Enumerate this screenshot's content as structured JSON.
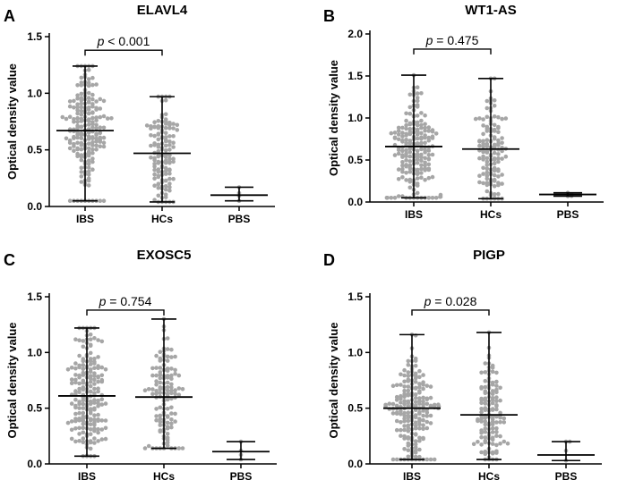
{
  "figure": {
    "colors": {
      "points": "#a6a6a6",
      "lines": "#000000",
      "text": "#000000"
    }
  },
  "chart_data": [
    {
      "type": "scatter",
      "panel": "A",
      "title": "ELAVL4",
      "xlabel": "",
      "ylabel": "Optical density value",
      "ylim": [
        0,
        1.5
      ],
      "yticks": [
        "0.0",
        "0.5",
        "1.0",
        "1.5"
      ],
      "ytick_values": [
        0,
        0.5,
        1.0,
        1.5
      ],
      "categories": [
        "IBS",
        "HCs",
        "PBS"
      ],
      "groups": [
        {
          "name": "IBS",
          "n": 200,
          "min": 0.05,
          "max": 1.24,
          "mean": 0.67,
          "spread": 0.32
        },
        {
          "name": "HCs",
          "n": 130,
          "min": 0.04,
          "max": 0.97,
          "mean": 0.47,
          "spread": 0.26
        },
        {
          "name": "PBS",
          "n": 4,
          "min": 0.05,
          "max": 0.17,
          "mean": 0.1,
          "spread": 0.04
        }
      ],
      "significance": {
        "p_symbol": "p",
        "text": " < 0.001",
        "between": [
          "IBS",
          "HCs"
        ],
        "y": 1.38
      }
    },
    {
      "type": "scatter",
      "panel": "B",
      "title": "WT1-AS",
      "xlabel": "",
      "ylabel": "Optical density value",
      "ylim": [
        0,
        2.0
      ],
      "yticks": [
        "0.0",
        "0.5",
        "1.0",
        "1.5",
        "2.0"
      ],
      "ytick_values": [
        0,
        0.5,
        1.0,
        1.5,
        2.0
      ],
      "categories": [
        "IBS",
        "HCs",
        "PBS"
      ],
      "groups": [
        {
          "name": "IBS",
          "n": 200,
          "min": 0.05,
          "max": 1.51,
          "mean": 0.66,
          "spread": 0.34
        },
        {
          "name": "HCs",
          "n": 130,
          "min": 0.04,
          "max": 1.47,
          "mean": 0.63,
          "spread": 0.34
        },
        {
          "name": "PBS",
          "n": 4,
          "min": 0.07,
          "max": 0.11,
          "mean": 0.09,
          "spread": 0.01
        }
      ],
      "significance": {
        "p_symbol": "p",
        "text": " = 0.475",
        "between": [
          "IBS",
          "HCs"
        ],
        "y": 1.82
      }
    },
    {
      "type": "scatter",
      "panel": "C",
      "title": "EXOSC5",
      "xlabel": "",
      "ylabel": "Optical density value",
      "ylim": [
        0,
        1.5
      ],
      "yticks": [
        "0.0",
        "0.5",
        "1.0",
        "1.5"
      ],
      "ytick_values": [
        0,
        0.5,
        1.0,
        1.5
      ],
      "categories": [
        "IBS",
        "HCs",
        "PBS"
      ],
      "groups": [
        {
          "name": "IBS",
          "n": 200,
          "min": 0.07,
          "max": 1.22,
          "mean": 0.61,
          "spread": 0.3
        },
        {
          "name": "HCs",
          "n": 130,
          "min": 0.14,
          "max": 1.3,
          "mean": 0.6,
          "spread": 0.28
        },
        {
          "name": "PBS",
          "n": 4,
          "min": 0.04,
          "max": 0.2,
          "mean": 0.11,
          "spread": 0.05
        }
      ],
      "significance": {
        "p_symbol": "p",
        "text": " = 0.754",
        "between": [
          "IBS",
          "HCs"
        ],
        "y": 1.38
      }
    },
    {
      "type": "scatter",
      "panel": "D",
      "title": "PIGP",
      "xlabel": "",
      "ylabel": "Optical density value",
      "ylim": [
        0,
        1.5
      ],
      "yticks": [
        "0.0",
        "0.5",
        "1.0",
        "1.5"
      ],
      "ytick_values": [
        0,
        0.5,
        1.0,
        1.5
      ],
      "categories": [
        "IBS",
        "HCs",
        "PBS"
      ],
      "groups": [
        {
          "name": "IBS",
          "n": 200,
          "min": 0.04,
          "max": 1.16,
          "mean": 0.5,
          "spread": 0.26
        },
        {
          "name": "HCs",
          "n": 130,
          "min": 0.04,
          "max": 1.18,
          "mean": 0.44,
          "spread": 0.24
        },
        {
          "name": "PBS",
          "n": 4,
          "min": 0.03,
          "max": 0.2,
          "mean": 0.08,
          "spread": 0.06
        }
      ],
      "significance": {
        "p_symbol": "p",
        "text": " = 0.028",
        "between": [
          "IBS",
          "HCs"
        ],
        "y": 1.38
      }
    }
  ]
}
